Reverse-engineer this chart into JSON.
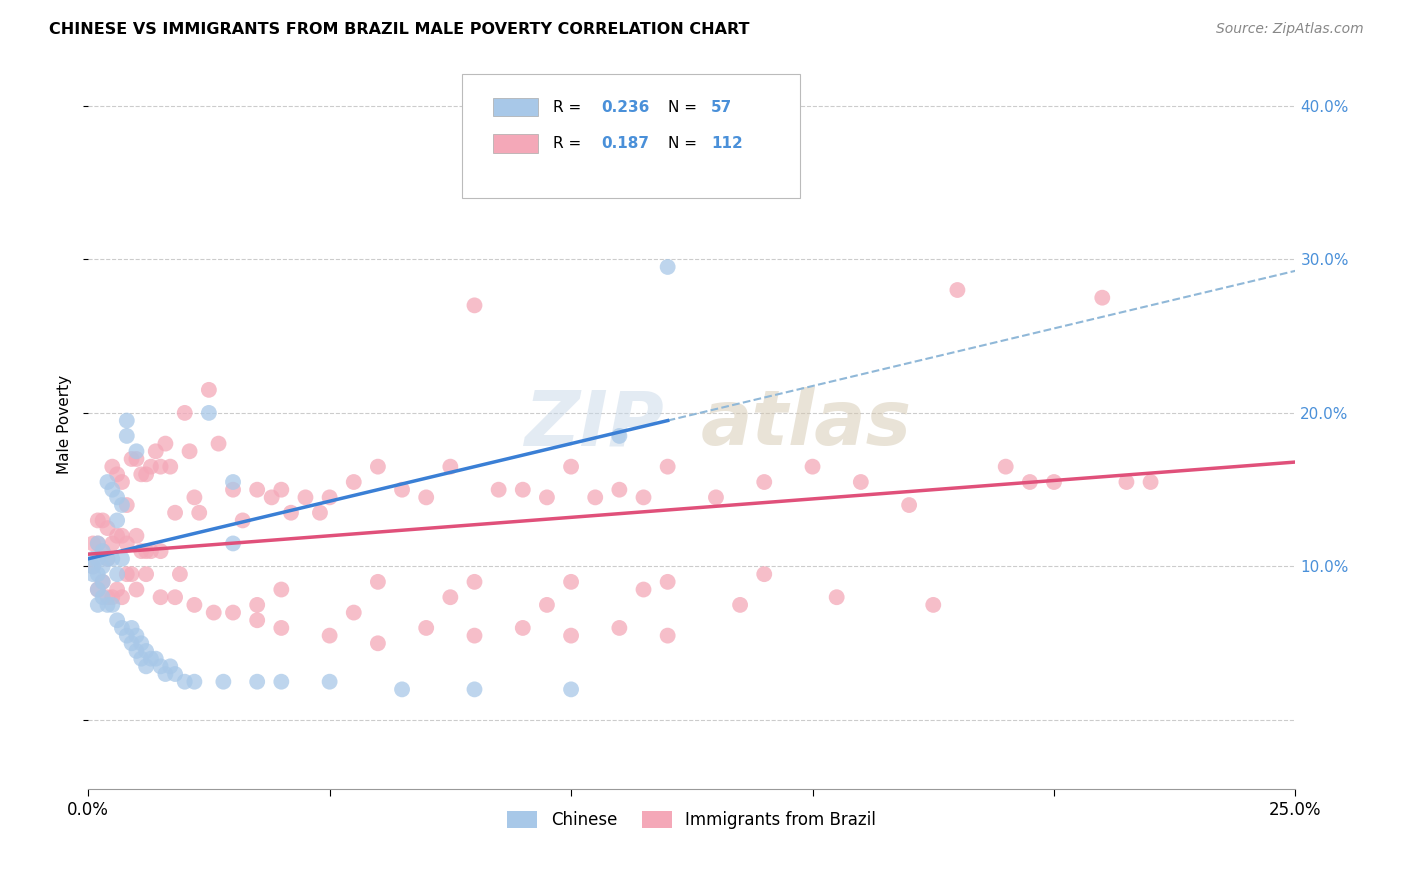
{
  "title": "CHINESE VS IMMIGRANTS FROM BRAZIL MALE POVERTY CORRELATION CHART",
  "source": "Source: ZipAtlas.com",
  "ylabel": "Male Poverty",
  "y_ticks": [
    0.0,
    0.1,
    0.2,
    0.3,
    0.4
  ],
  "xlim": [
    0.0,
    0.25
  ],
  "ylim": [
    -0.045,
    0.43
  ],
  "blue_color": "#a8c8e8",
  "pink_color": "#f4a8b8",
  "blue_line_color": "#3a7fd5",
  "pink_line_color": "#e0507a",
  "dashed_line_color": "#90b8d8",
  "legend_r1": "0.236",
  "legend_n1": "57",
  "legend_r2": "0.187",
  "legend_n2": "112",
  "blue_line_x0": 0.0,
  "blue_line_y0": 0.105,
  "blue_line_x1": 0.12,
  "blue_line_y1": 0.195,
  "pink_line_x0": 0.0,
  "pink_line_y0": 0.108,
  "pink_line_x1": 0.25,
  "pink_line_y1": 0.168,
  "chinese_scatter_x": [
    0.001,
    0.001,
    0.001,
    0.002,
    0.002,
    0.002,
    0.002,
    0.002,
    0.003,
    0.003,
    0.003,
    0.003,
    0.004,
    0.004,
    0.004,
    0.005,
    0.005,
    0.005,
    0.006,
    0.006,
    0.006,
    0.006,
    0.007,
    0.007,
    0.007,
    0.008,
    0.008,
    0.008,
    0.009,
    0.009,
    0.01,
    0.01,
    0.01,
    0.011,
    0.011,
    0.012,
    0.012,
    0.013,
    0.014,
    0.015,
    0.016,
    0.017,
    0.018,
    0.02,
    0.022,
    0.025,
    0.028,
    0.03,
    0.035,
    0.04,
    0.05,
    0.065,
    0.08,
    0.1,
    0.11,
    0.12,
    0.03
  ],
  "chinese_scatter_y": [
    0.105,
    0.1,
    0.095,
    0.115,
    0.105,
    0.095,
    0.085,
    0.075,
    0.11,
    0.1,
    0.09,
    0.08,
    0.155,
    0.105,
    0.075,
    0.15,
    0.105,
    0.075,
    0.145,
    0.13,
    0.095,
    0.065,
    0.14,
    0.105,
    0.06,
    0.055,
    0.195,
    0.185,
    0.06,
    0.05,
    0.175,
    0.055,
    0.045,
    0.05,
    0.04,
    0.045,
    0.035,
    0.04,
    0.04,
    0.035,
    0.03,
    0.035,
    0.03,
    0.025,
    0.025,
    0.2,
    0.025,
    0.155,
    0.025,
    0.025,
    0.025,
    0.02,
    0.02,
    0.02,
    0.185,
    0.295,
    0.115
  ],
  "brazil_scatter_x": [
    0.001,
    0.001,
    0.002,
    0.002,
    0.002,
    0.003,
    0.003,
    0.003,
    0.004,
    0.004,
    0.004,
    0.005,
    0.005,
    0.005,
    0.006,
    0.006,
    0.006,
    0.007,
    0.007,
    0.007,
    0.008,
    0.008,
    0.009,
    0.009,
    0.01,
    0.01,
    0.01,
    0.011,
    0.011,
    0.012,
    0.012,
    0.013,
    0.013,
    0.014,
    0.015,
    0.015,
    0.016,
    0.017,
    0.018,
    0.019,
    0.02,
    0.021,
    0.022,
    0.023,
    0.025,
    0.027,
    0.03,
    0.032,
    0.035,
    0.038,
    0.04,
    0.042,
    0.045,
    0.048,
    0.05,
    0.055,
    0.06,
    0.065,
    0.07,
    0.075,
    0.08,
    0.085,
    0.09,
    0.095,
    0.1,
    0.105,
    0.11,
    0.115,
    0.12,
    0.13,
    0.14,
    0.15,
    0.16,
    0.17,
    0.18,
    0.19,
    0.2,
    0.21,
    0.22,
    0.008,
    0.012,
    0.015,
    0.018,
    0.022,
    0.026,
    0.03,
    0.035,
    0.04,
    0.05,
    0.06,
    0.07,
    0.08,
    0.09,
    0.1,
    0.11,
    0.12,
    0.035,
    0.055,
    0.075,
    0.095,
    0.115,
    0.135,
    0.155,
    0.175,
    0.195,
    0.215,
    0.04,
    0.06,
    0.08,
    0.1,
    0.12,
    0.14
  ],
  "brazil_scatter_y": [
    0.115,
    0.1,
    0.13,
    0.115,
    0.085,
    0.13,
    0.11,
    0.09,
    0.125,
    0.105,
    0.08,
    0.165,
    0.115,
    0.08,
    0.16,
    0.12,
    0.085,
    0.155,
    0.12,
    0.08,
    0.14,
    0.115,
    0.17,
    0.095,
    0.17,
    0.12,
    0.085,
    0.16,
    0.11,
    0.16,
    0.11,
    0.165,
    0.11,
    0.175,
    0.165,
    0.11,
    0.18,
    0.165,
    0.135,
    0.095,
    0.2,
    0.175,
    0.145,
    0.135,
    0.215,
    0.18,
    0.15,
    0.13,
    0.15,
    0.145,
    0.15,
    0.135,
    0.145,
    0.135,
    0.145,
    0.155,
    0.165,
    0.15,
    0.145,
    0.165,
    0.27,
    0.15,
    0.15,
    0.145,
    0.165,
    0.145,
    0.15,
    0.145,
    0.165,
    0.145,
    0.155,
    0.165,
    0.155,
    0.14,
    0.28,
    0.165,
    0.155,
    0.275,
    0.155,
    0.095,
    0.095,
    0.08,
    0.08,
    0.075,
    0.07,
    0.07,
    0.065,
    0.06,
    0.055,
    0.05,
    0.06,
    0.055,
    0.06,
    0.055,
    0.06,
    0.055,
    0.075,
    0.07,
    0.08,
    0.075,
    0.085,
    0.075,
    0.08,
    0.075,
    0.155,
    0.155,
    0.085,
    0.09,
    0.09,
    0.09,
    0.09,
    0.095
  ]
}
